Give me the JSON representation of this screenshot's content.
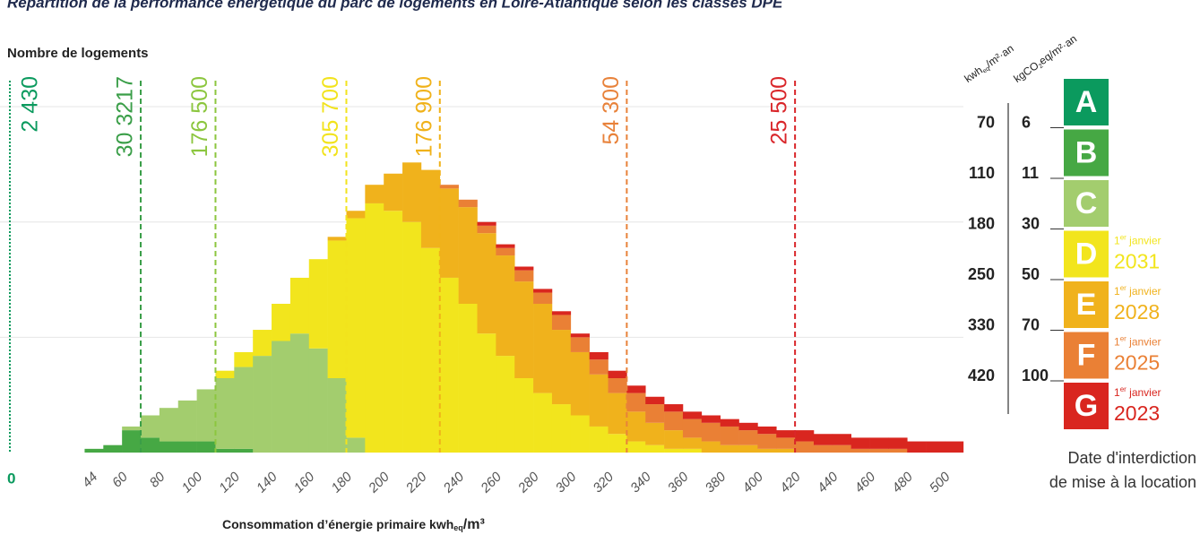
{
  "chart_data": {
    "type": "histogram",
    "title": "Répartition de la performance énergétique du parc de logements en Loire-Atlantique selon les classes DPE",
    "y_label": "Nombre de logements",
    "x_label": {
      "text": "Consommation d’énergie primaire kwh",
      "sub": "eq",
      "tail": "/m³"
    },
    "bins": [
      40,
      50,
      60,
      70,
      80,
      90,
      100,
      110,
      120,
      130,
      140,
      150,
      160,
      170,
      180,
      190,
      200,
      210,
      220,
      230,
      240,
      250,
      260,
      270,
      280,
      290,
      300,
      310,
      320,
      330,
      340,
      350,
      360,
      370,
      380,
      390,
      400,
      410,
      420,
      430,
      440,
      450,
      460,
      470,
      480,
      490,
      500,
      510
    ],
    "series": [
      {
        "name": "A",
        "color": "#0b9a5e",
        "values": [
          0,
          0,
          0,
          0,
          0,
          0,
          0,
          0,
          0,
          0,
          0,
          0,
          0,
          0,
          0,
          0,
          0,
          0,
          0,
          0,
          0,
          0,
          0,
          0,
          0,
          0,
          0,
          0,
          0,
          0,
          0,
          0,
          0,
          0,
          0,
          0,
          0,
          0,
          0,
          0,
          0,
          0,
          0,
          0,
          0,
          0,
          0
        ]
      },
      {
        "name": "B",
        "color": "#46a844",
        "values": [
          1,
          2,
          6,
          4,
          3,
          3,
          3,
          1,
          1,
          0,
          0,
          0,
          0,
          0,
          0,
          0,
          0,
          0,
          0,
          0,
          0,
          0,
          0,
          0,
          0,
          0,
          0,
          0,
          0,
          0,
          0,
          0,
          0,
          0,
          0,
          0,
          0,
          0,
          0,
          0,
          0,
          0,
          0,
          0,
          0,
          0,
          0
        ]
      },
      {
        "name": "C",
        "color": "#a3cd6e",
        "values": [
          0,
          0,
          1,
          6,
          9,
          11,
          14,
          19,
          22,
          26,
          30,
          32,
          28,
          20,
          4,
          0,
          0,
          0,
          0,
          0,
          0,
          0,
          0,
          0,
          0,
          0,
          0,
          0,
          0,
          0,
          0,
          0,
          0,
          0,
          0,
          0,
          0,
          0,
          0,
          0,
          0,
          0,
          0,
          0,
          0,
          0,
          0
        ]
      },
      {
        "name": "D",
        "color": "#f2e51d",
        "values": [
          0,
          0,
          0,
          0,
          0,
          0,
          0,
          2,
          4,
          7,
          10,
          15,
          24,
          37,
          59,
          67,
          65,
          62,
          55,
          47,
          40,
          32,
          26,
          20,
          16,
          13,
          10,
          7,
          5,
          3,
          2,
          1,
          1,
          0,
          0,
          0,
          0,
          0,
          0,
          0,
          0,
          0,
          0,
          0,
          0,
          0,
          0
        ]
      },
      {
        "name": "E",
        "color": "#f0b21c",
        "values": [
          0,
          0,
          0,
          0,
          0,
          0,
          0,
          0,
          0,
          0,
          0,
          0,
          0,
          1,
          2,
          5,
          10,
          16,
          21,
          24,
          26,
          27,
          27,
          26,
          24,
          20,
          17,
          14,
          11,
          8,
          6,
          5,
          3,
          3,
          2,
          2,
          1,
          1,
          0,
          0,
          0,
          0,
          0,
          0,
          0,
          0,
          0
        ]
      },
      {
        "name": "F",
        "color": "#ea8035",
        "values": [
          0,
          0,
          0,
          0,
          0,
          0,
          0,
          0,
          0,
          0,
          0,
          0,
          0,
          0,
          0,
          0,
          0,
          0,
          0,
          1,
          2,
          2,
          2,
          3,
          3,
          4,
          4,
          4,
          4,
          5,
          5,
          5,
          5,
          5,
          5,
          4,
          4,
          3,
          3,
          2,
          2,
          1,
          1,
          1,
          0,
          0,
          0
        ]
      },
      {
        "name": "G",
        "color": "#d9261f",
        "values": [
          0,
          0,
          0,
          0,
          0,
          0,
          0,
          0,
          0,
          0,
          0,
          0,
          0,
          0,
          0,
          0,
          0,
          0,
          0,
          0,
          0,
          1,
          1,
          1,
          1,
          1,
          1,
          2,
          2,
          2,
          2,
          2,
          2,
          2,
          2,
          2,
          2,
          2,
          3,
          3,
          3,
          3,
          3,
          3,
          3,
          3,
          3
        ]
      }
    ],
    "xlim": [
      0,
      510
    ],
    "xticks": [
      44,
      60,
      80,
      100,
      120,
      140,
      160,
      180,
      200,
      220,
      240,
      260,
      280,
      300,
      320,
      340,
      360,
      380,
      400,
      420,
      440,
      460,
      480,
      500
    ],
    "ylim": [
      0,
      100
    ],
    "yticks": [
      0
    ],
    "ygrid": [
      31,
      62,
      93
    ],
    "markers": [
      {
        "x": 0,
        "label": "2 430",
        "color": "#0b9a5e"
      },
      {
        "x": 70,
        "label": "30 3217",
        "color": "#3a9e48"
      },
      {
        "x": 110,
        "label": "176 500",
        "color": "#8cc63f"
      },
      {
        "x": 180,
        "label": "305 700",
        "color": "#f2e31d"
      },
      {
        "x": 230,
        "label": "176 900",
        "color": "#f0b21a"
      },
      {
        "x": 330,
        "label": "54 300",
        "color": "#e8823a"
      },
      {
        "x": 420,
        "label": "25 500",
        "color": "#d9262a"
      }
    ],
    "scale_headers": [
      {
        "text": "kwh",
        "sub": "eq",
        "tail": "/m²·an"
      },
      {
        "text": "kgCO",
        "sub": "2",
        "tail": "eq/m²·an"
      }
    ],
    "kwh_thresholds": [
      70,
      110,
      180,
      250,
      330,
      420
    ],
    "co2_thresholds": [
      6,
      11,
      30,
      50,
      70,
      100
    ],
    "bans": [
      {
        "class": "D",
        "prefix": "1",
        "sup": "er",
        "text": " janvier",
        "year": "2031"
      },
      {
        "class": "E",
        "prefix": "1",
        "sup": "er",
        "text": " janvier",
        "year": "2028"
      },
      {
        "class": "F",
        "prefix": "1",
        "sup": "er",
        "text": " janvier",
        "year": "2025"
      },
      {
        "class": "G",
        "prefix": "1",
        "sup": "er",
        "text": " janvier",
        "year": "2023"
      }
    ],
    "ban_caption": [
      "Date d'interdiction",
      "de mise à la location"
    ]
  }
}
